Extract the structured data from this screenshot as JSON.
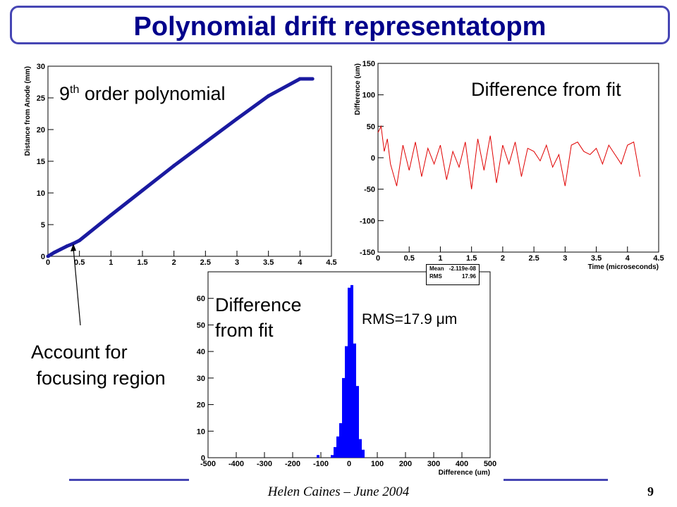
{
  "slide": {
    "title": "Polynomial drift representatopm",
    "footer": "Helen Caines – June 2004",
    "page_number": "9",
    "accent_color": "#4646b4",
    "title_color": "#00008b"
  },
  "labels": {
    "fit_label_base": "9",
    "fit_label_sup": "th",
    "fit_label_rest": " order polynomial",
    "diff_fit_top": "Difference from fit",
    "diff_fit_bottom_line1": "Difference",
    "diff_fit_bottom_line2": "from fit",
    "rms_text": "RMS=17.9 μm",
    "account_line1": "Account for",
    "account_line2": " focusing region"
  },
  "stats": {
    "mean_label": "Mean",
    "mean_value": "-2.119e-08",
    "rms_label": "RMS",
    "rms_value": "17.96"
  },
  "chart_data": [
    {
      "type": "line",
      "xlabel": "",
      "ylabel": "Distance from Anode (mm)",
      "xlim": [
        0,
        4.5
      ],
      "ylim": [
        0,
        30
      ],
      "xticks": [
        "0",
        "0.5",
        "1",
        "1.5",
        "2",
        "2.5",
        "3",
        "3.5",
        "4",
        "4.5"
      ],
      "yticks": [
        "0",
        "5",
        "10",
        "15",
        "20",
        "25",
        "30"
      ],
      "x": [
        0,
        0.1,
        0.2,
        0.3,
        0.4,
        0.5,
        1.0,
        1.5,
        2.0,
        2.5,
        3.0,
        3.5,
        4.0,
        4.2
      ],
      "y": [
        0,
        0.6,
        1.1,
        1.6,
        2.0,
        2.5,
        6.5,
        10.4,
        14.3,
        18.0,
        21.7,
        25.3,
        28.0,
        28.0
      ],
      "line_color": "#1a1aa0"
    },
    {
      "type": "line",
      "xlabel": "Time (microseconds)",
      "ylabel": "Difference (um)",
      "xlim": [
        0,
        4.5
      ],
      "ylim": [
        -150,
        150
      ],
      "xticks": [
        "0",
        "0.5",
        "1",
        "1.5",
        "2",
        "2.5",
        "3",
        "3.5",
        "4",
        "4.5"
      ],
      "yticks": [
        "-150",
        "-100",
        "-50",
        "0",
        "50",
        "100",
        "150"
      ],
      "x": [
        0,
        0.05,
        0.1,
        0.15,
        0.2,
        0.3,
        0.4,
        0.5,
        0.6,
        0.7,
        0.8,
        0.9,
        1.0,
        1.1,
        1.2,
        1.3,
        1.4,
        1.5,
        1.6,
        1.7,
        1.8,
        1.9,
        2.0,
        2.1,
        2.2,
        2.3,
        2.4,
        2.5,
        2.6,
        2.7,
        2.8,
        2.9,
        3.0,
        3.1,
        3.2,
        3.3,
        3.4,
        3.5,
        3.6,
        3.7,
        3.8,
        3.9,
        4.0,
        4.1,
        4.2
      ],
      "y": [
        40,
        50,
        10,
        30,
        -10,
        -45,
        20,
        -20,
        25,
        -30,
        15,
        -10,
        20,
        -35,
        10,
        -15,
        25,
        -50,
        30,
        -20,
        35,
        -40,
        20,
        -10,
        25,
        -30,
        15,
        10,
        -5,
        20,
        -15,
        5,
        -45,
        20,
        25,
        10,
        5,
        15,
        -10,
        20,
        5,
        -10,
        20,
        25,
        -30
      ],
      "line_color": "#e00000"
    },
    {
      "type": "bar",
      "xlabel": "Difference (um)",
      "ylabel": "",
      "xlim": [
        -500,
        500
      ],
      "ylim": [
        0,
        70
      ],
      "xticks": [
        "-500",
        "-400",
        "-300",
        "-200",
        "-100",
        "0",
        "100",
        "200",
        "300",
        "400",
        "500"
      ],
      "yticks": [
        "0",
        "10",
        "20",
        "30",
        "40",
        "50",
        "60"
      ],
      "bin_width": 10,
      "x": [
        -110,
        -100,
        -60,
        -50,
        -40,
        -30,
        -20,
        -10,
        0,
        10,
        20,
        30,
        40,
        50
      ],
      "values": [
        1,
        0,
        1,
        4,
        8,
        13,
        30,
        42,
        64,
        65,
        43,
        27,
        7,
        3
      ],
      "bar_color": "#0000ff"
    }
  ]
}
